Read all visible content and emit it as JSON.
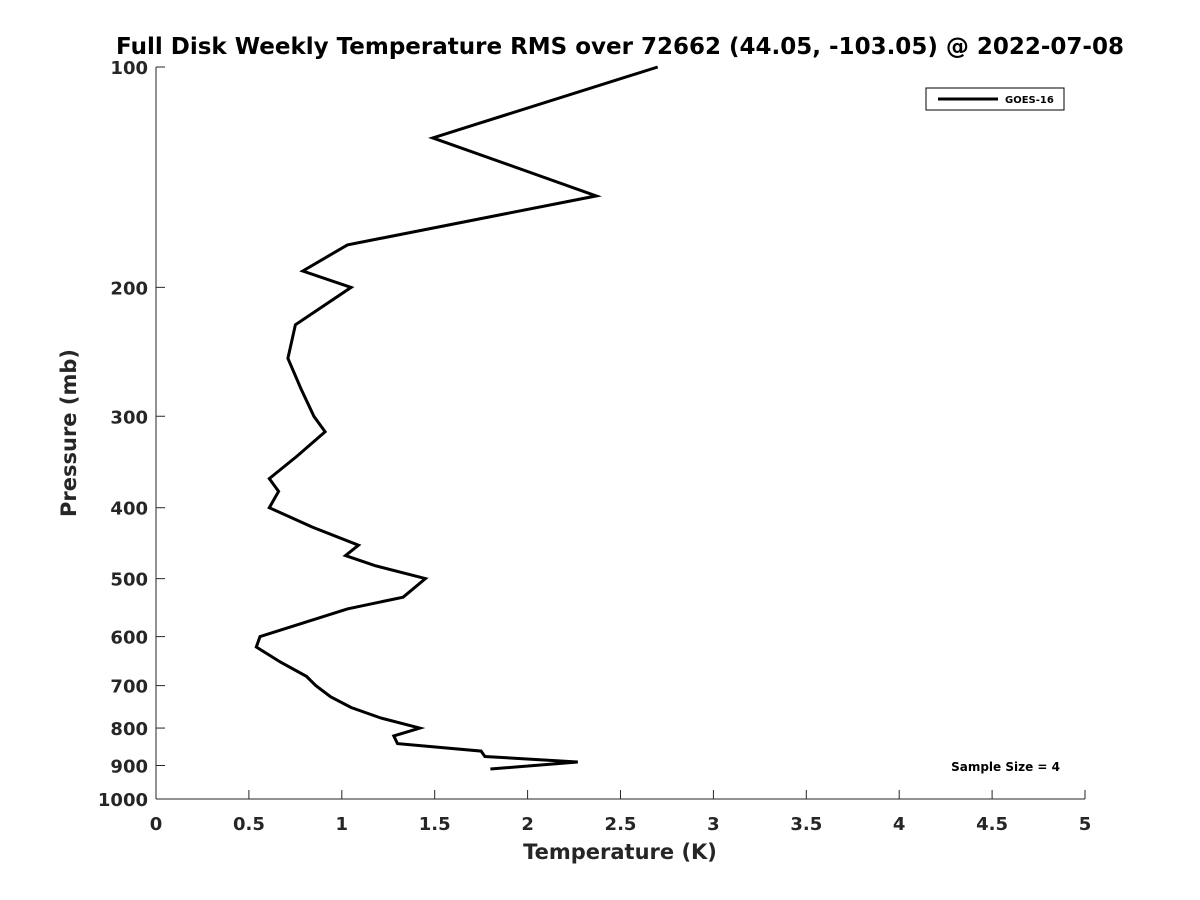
{
  "chart_data": {
    "type": "line",
    "title": "Full Disk Weekly Temperature RMS over 72662 (44.05, -103.05) @ 2022-07-08",
    "xlabel": "Temperature (K)",
    "ylabel": "Pressure (mb)",
    "xlim": [
      0,
      5
    ],
    "ylim": [
      100,
      1000
    ],
    "y_scale": "log",
    "y_reversed": true,
    "x_ticks": [
      "0",
      "0.5",
      "1",
      "1.5",
      "2",
      "2.5",
      "3",
      "3.5",
      "4",
      "4.5",
      "5"
    ],
    "y_ticks": [
      "100",
      "200",
      "300",
      "400",
      "500",
      "600",
      "700",
      "800",
      "900",
      "1000"
    ],
    "grid": false,
    "legend_position": "top-right",
    "series": [
      {
        "name": "GOES-16",
        "color": "#000000",
        "points": [
          {
            "x": 2.7,
            "y": 100
          },
          {
            "x": 1.49,
            "y": 125
          },
          {
            "x": 2.37,
            "y": 150
          },
          {
            "x": 1.03,
            "y": 175
          },
          {
            "x": 0.79,
            "y": 190
          },
          {
            "x": 1.05,
            "y": 200
          },
          {
            "x": 0.75,
            "y": 225
          },
          {
            "x": 0.71,
            "y": 250
          },
          {
            "x": 0.78,
            "y": 275
          },
          {
            "x": 0.85,
            "y": 300
          },
          {
            "x": 0.91,
            "y": 315
          },
          {
            "x": 0.76,
            "y": 340
          },
          {
            "x": 0.61,
            "y": 365
          },
          {
            "x": 0.66,
            "y": 380
          },
          {
            "x": 0.61,
            "y": 400
          },
          {
            "x": 0.84,
            "y": 425
          },
          {
            "x": 1.09,
            "y": 450
          },
          {
            "x": 1.02,
            "y": 465
          },
          {
            "x": 1.18,
            "y": 480
          },
          {
            "x": 1.45,
            "y": 500
          },
          {
            "x": 1.33,
            "y": 530
          },
          {
            "x": 1.03,
            "y": 550
          },
          {
            "x": 0.56,
            "y": 600
          },
          {
            "x": 0.54,
            "y": 620
          },
          {
            "x": 0.67,
            "y": 650
          },
          {
            "x": 0.81,
            "y": 680
          },
          {
            "x": 0.86,
            "y": 700
          },
          {
            "x": 0.94,
            "y": 725
          },
          {
            "x": 1.05,
            "y": 750
          },
          {
            "x": 1.21,
            "y": 775
          },
          {
            "x": 1.42,
            "y": 800
          },
          {
            "x": 1.28,
            "y": 820
          },
          {
            "x": 1.3,
            "y": 840
          },
          {
            "x": 1.75,
            "y": 860
          },
          {
            "x": 1.77,
            "y": 875
          },
          {
            "x": 2.27,
            "y": 890
          },
          {
            "x": 1.8,
            "y": 910
          }
        ]
      }
    ],
    "annotations": [
      "Sample Size = 4"
    ]
  }
}
